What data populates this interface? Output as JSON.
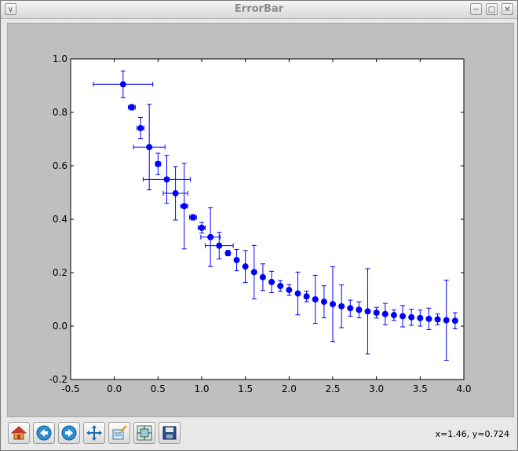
{
  "window": {
    "title": "ErrorBar"
  },
  "titlebar_buttons": [
    {
      "name": "minimize-button",
      "glyph": "−"
    },
    {
      "name": "maximize-button",
      "glyph": "□"
    },
    {
      "name": "close-button",
      "glyph": "✕"
    }
  ],
  "menu_glyph": "∨",
  "toolbar": {
    "tools": [
      {
        "name": "home-button",
        "icon": "home-icon"
      },
      {
        "name": "back-button",
        "icon": "back-arrow-icon"
      },
      {
        "name": "forward-button",
        "icon": "forward-arrow-icon"
      },
      {
        "name": "pan-button",
        "icon": "move-icon"
      },
      {
        "name": "zoom-button",
        "icon": "zoom-rect-icon"
      },
      {
        "name": "configure-subplots-button",
        "icon": "subplots-icon"
      },
      {
        "name": "save-button",
        "icon": "save-icon"
      }
    ],
    "coords": "x=1.46, y=0.724"
  },
  "colors": {
    "marker": "#0000ff",
    "axes_bg": "#ffffff",
    "frame_bg": "#bfbfbf"
  },
  "chart_data": {
    "type": "scatter",
    "title": "",
    "xlabel": "",
    "ylabel": "",
    "xlim": [
      -0.5,
      4.0
    ],
    "ylim": [
      -0.2,
      1.0
    ],
    "grid": false,
    "xticks": [
      "-0.5",
      "0.0",
      "0.5",
      "1.0",
      "1.5",
      "2.0",
      "2.5",
      "3.0",
      "3.5",
      "4.0"
    ],
    "yticks": [
      "-0.2",
      "0.0",
      "0.2",
      "0.4",
      "0.6",
      "0.8",
      "1.0"
    ],
    "x": [
      0.1,
      0.2,
      0.3,
      0.4,
      0.5,
      0.6,
      0.7,
      0.8,
      0.9,
      1.0,
      1.1,
      1.2,
      1.3,
      1.4,
      1.5,
      1.6,
      1.7,
      1.8,
      1.9,
      2.0,
      2.1,
      2.2,
      2.3,
      2.4,
      2.5,
      2.6,
      2.7,
      2.8,
      2.9,
      3.0,
      3.1,
      3.2,
      3.3,
      3.4,
      3.5,
      3.6,
      3.7,
      3.8,
      3.9
    ],
    "y": [
      0.905,
      0.819,
      0.741,
      0.67,
      0.607,
      0.549,
      0.497,
      0.449,
      0.407,
      0.368,
      0.333,
      0.301,
      0.273,
      0.247,
      0.223,
      0.202,
      0.183,
      0.165,
      0.15,
      0.135,
      0.122,
      0.111,
      0.1,
      0.091,
      0.082,
      0.074,
      0.067,
      0.061,
      0.055,
      0.05,
      0.045,
      0.041,
      0.037,
      0.033,
      0.03,
      0.027,
      0.025,
      0.022,
      0.02
    ],
    "yerr": [
      0.05,
      0.01,
      0.04,
      0.16,
      0.04,
      0.09,
      0.1,
      0.16,
      0.01,
      0.02,
      0.11,
      0.05,
      0.01,
      0.04,
      0.06,
      0.1,
      0.05,
      0.04,
      0.02,
      0.02,
      0.08,
      0.02,
      0.09,
      0.06,
      0.14,
      0.08,
      0.03,
      0.03,
      0.16,
      0.02,
      0.04,
      0.02,
      0.04,
      0.03,
      0.03,
      0.04,
      0.02,
      0.15,
      0.03
    ],
    "xerr": [
      0.34,
      0.04,
      0.04,
      0.18,
      0.03,
      0.27,
      0.14,
      0.04,
      0.04,
      0.04,
      0.11,
      0.16,
      0.01,
      0.01,
      0.01,
      0.01,
      0.01,
      0.01,
      0.01,
      0.01,
      0.01,
      0.01,
      0.01,
      0.01,
      0.01,
      0.01,
      0.01,
      0.01,
      0.01,
      0.01,
      0.01,
      0.01,
      0.01,
      0.01,
      0.01,
      0.01,
      0.01,
      0.01,
      0.01
    ]
  }
}
